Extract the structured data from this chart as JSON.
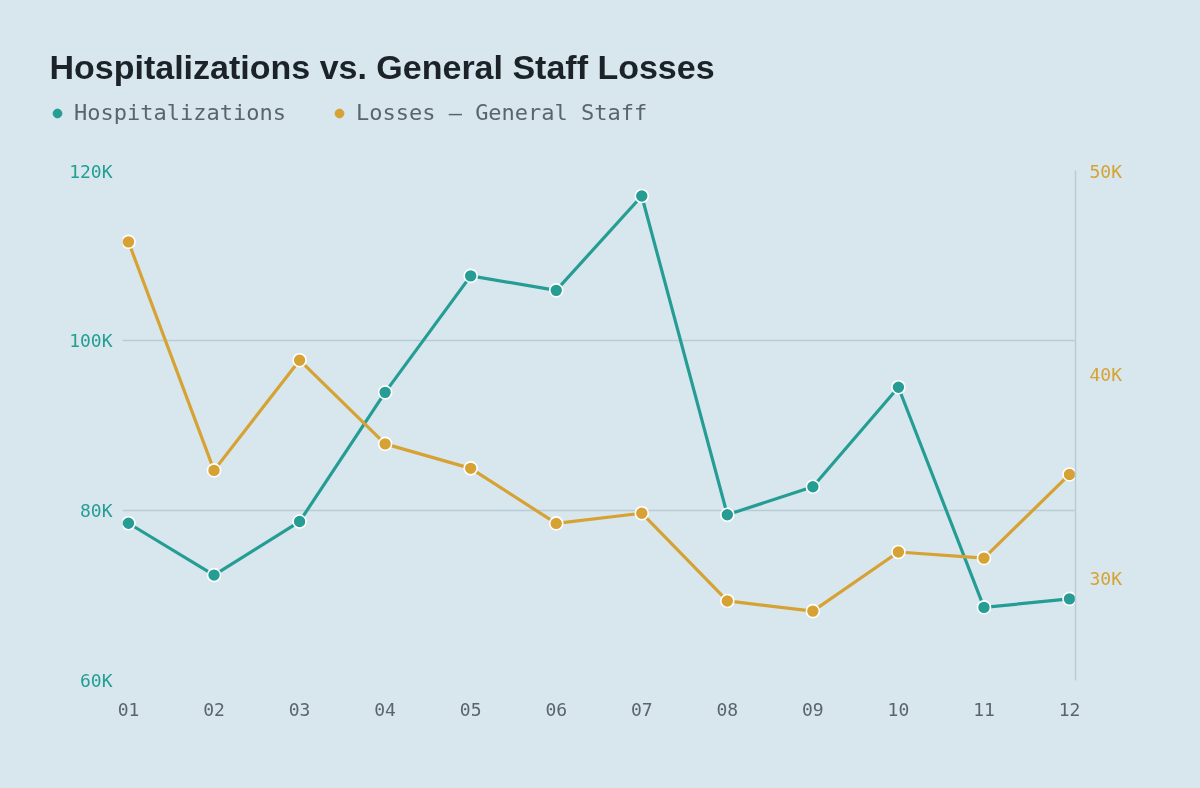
{
  "chart_data": {
    "type": "line",
    "title": "Hospitalizations vs. General Staff Losses",
    "categories": [
      "01",
      "02",
      "03",
      "04",
      "05",
      "06",
      "07",
      "08",
      "09",
      "10",
      "11",
      "12"
    ],
    "series": [
      {
        "name": "Hospitalizations",
        "color": "#259d94",
        "values": [
          78500,
          72400,
          78700,
          93900,
          107600,
          105900,
          117000,
          79500,
          82800,
          94500,
          68600,
          69600
        ]
      },
      {
        "name": "Losses – General Staff",
        "color": "#d6a234",
        "axis": "y2",
        "values": [
          46500,
          35300,
          40700,
          36600,
          35400,
          32700,
          33200,
          28900,
          28400,
          31300,
          31000,
          35100
        ]
      }
    ],
    "ylim": [
      60000,
      120000
    ],
    "yticks": [
      {
        "value": 60000,
        "label": "60K"
      },
      {
        "value": 80000,
        "label": "80K"
      },
      {
        "value": 100000,
        "label": "100K"
      },
      {
        "value": 120000,
        "label": "120K"
      }
    ],
    "y2lim": [
      25000,
      50000
    ],
    "y2ticks": [
      {
        "value": 30000,
        "label": "30K"
      },
      {
        "value": 40000,
        "label": "40K"
      },
      {
        "value": 50000,
        "label": "50K"
      }
    ],
    "grid": "y",
    "legend": "top left",
    "marker": "circle",
    "line_style": "solid"
  }
}
